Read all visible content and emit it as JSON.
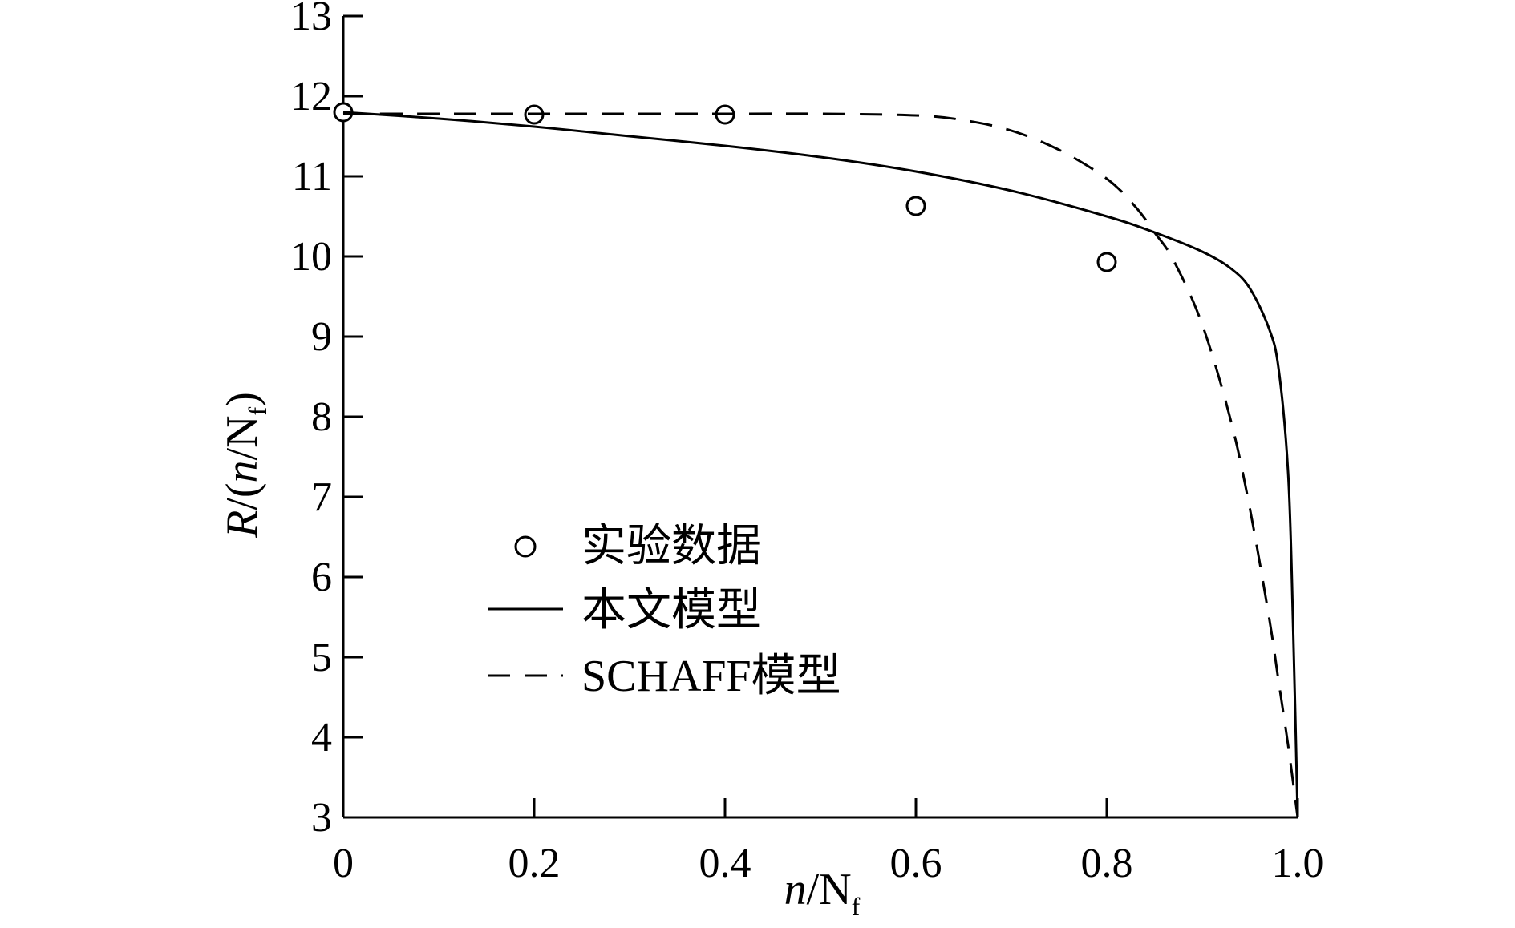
{
  "chart_data": {
    "type": "line",
    "xlim": [
      0,
      1.0
    ],
    "ylim": [
      3,
      13
    ],
    "x_ticks": [
      0,
      0.2,
      0.4,
      0.6,
      0.8,
      1.0
    ],
    "x_tick_labels": [
      "0",
      "0.2",
      "0.4",
      "0.6",
      "0.8",
      "1.0"
    ],
    "y_ticks": [
      3,
      4,
      5,
      6,
      7,
      8,
      9,
      10,
      11,
      12,
      13
    ],
    "y_tick_labels": [
      "3",
      "4",
      "5",
      "6",
      "7",
      "8",
      "9",
      "10",
      "11",
      "12",
      "13"
    ],
    "xlabel": {
      "n": "n",
      "slash": "/N",
      "sub": "f"
    },
    "ylabel": {
      "R": "R",
      "open": "/(",
      "n": "n",
      "slash": "/N",
      "sub": "f",
      "close": ")"
    },
    "grid": false,
    "legend_position": "center-left",
    "series": [
      {
        "name": "实验数据",
        "style": "markers",
        "marker": "open-circle",
        "x": [
          0,
          0.2,
          0.4,
          0.6,
          0.8
        ],
        "y": [
          11.8,
          11.77,
          11.77,
          10.63,
          9.93
        ]
      },
      {
        "name": "本文模型",
        "style": "solid",
        "x": [
          0,
          0.1,
          0.2,
          0.3,
          0.4,
          0.5,
          0.6,
          0.7,
          0.8,
          0.85,
          0.9,
          0.93,
          0.95,
          0.97,
          0.98,
          0.99,
          0.995,
          1.0
        ],
        "y": [
          11.8,
          11.72,
          11.62,
          11.5,
          11.38,
          11.24,
          11.06,
          10.82,
          10.5,
          10.3,
          10.06,
          9.85,
          9.6,
          9.1,
          8.6,
          7.3,
          5.5,
          3.0
        ]
      },
      {
        "name": "SCHAFF模型",
        "style": "dashed",
        "x": [
          0,
          0.1,
          0.2,
          0.3,
          0.4,
          0.5,
          0.6,
          0.65,
          0.7,
          0.75,
          0.8,
          0.83,
          0.85,
          0.87,
          0.9,
          0.93,
          0.95,
          0.97,
          0.98,
          0.99,
          1.0
        ],
        "y": [
          11.78,
          11.78,
          11.78,
          11.78,
          11.78,
          11.78,
          11.76,
          11.7,
          11.57,
          11.33,
          10.97,
          10.62,
          10.3,
          9.95,
          9.15,
          7.95,
          6.85,
          5.5,
          4.7,
          3.9,
          3.0
        ]
      }
    ]
  }
}
